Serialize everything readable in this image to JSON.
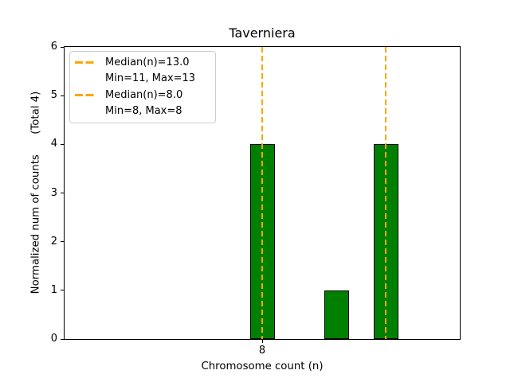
{
  "figure": {
    "background": "#ffffff"
  },
  "chart_data": {
    "type": "bar",
    "title": "Taverniera",
    "xlabel": "Chromosome count (n)",
    "ylabel": "Normalized num of counts      (Total 4)",
    "x": [
      8,
      11,
      13
    ],
    "values": [
      4,
      1,
      4
    ],
    "bar_width": 1,
    "bar_color": "#008000",
    "bar_edge_color": "#000000",
    "xlim": [
      0,
      16
    ],
    "ylim": [
      0,
      6
    ],
    "xticks": [
      8
    ],
    "yticks": [
      0,
      1,
      2,
      3,
      4,
      5,
      6
    ],
    "grid": false,
    "legend_position": "upper-left",
    "median_lines": [
      {
        "x": 13.0,
        "color": "#FFA500",
        "style": "dashed"
      },
      {
        "x": 8.0,
        "color": "#FFA500",
        "style": "dashed"
      }
    ],
    "legend": {
      "entries": [
        {
          "label": "Median(n)=13.0",
          "handle": "dashed-line",
          "color": "#FFA500"
        },
        {
          "label": "Min=11, Max=13",
          "handle": "none",
          "color": ""
        },
        {
          "label": "Median(n)=8.0",
          "handle": "dashed-line",
          "color": "#FFA500"
        },
        {
          "label": "Min=8, Max=8",
          "handle": "none",
          "color": ""
        }
      ]
    }
  }
}
